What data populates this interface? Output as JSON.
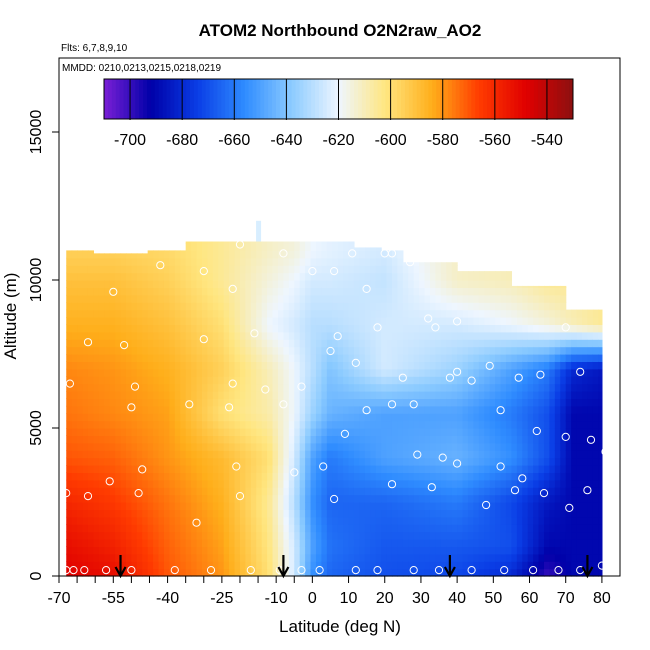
{
  "chart_data": {
    "type": "heatmap",
    "title": "ATOM2 Northbound O2N2raw_AO2",
    "flights_label": "Flts: 6,7,8,9,10",
    "dates_label": "MMDD: 0210,0213,0215,0218,0219",
    "xlabel": "Latitude (deg N)",
    "ylabel": "Altitude (m)",
    "xlim": [
      -70,
      85
    ],
    "ylim": [
      0,
      17500
    ],
    "x_ticks": [
      -70,
      -55,
      -40,
      -25,
      -10,
      0,
      10,
      20,
      30,
      40,
      50,
      60,
      70,
      80
    ],
    "x_tick_labels": [
      "-70",
      "-55",
      "-40",
      "-25",
      "-10",
      "0",
      "10",
      "20",
      "30",
      "40",
      "50",
      "60",
      "70",
      "80"
    ],
    "x_minor_ticks": [
      -65,
      -60,
      -50,
      -45,
      -35,
      -30,
      -20,
      -15,
      -5
    ],
    "y_ticks": [
      0,
      5000,
      10000,
      15000
    ],
    "y_tick_labels": [
      "0",
      "5000",
      "10000",
      "15000"
    ],
    "colorbar": {
      "ticks": [
        -700,
        -680,
        -660,
        -640,
        -620,
        -600,
        -580,
        -560,
        -540
      ],
      "tick_labels": [
        "-700",
        "-680",
        "-660",
        "-640",
        "-620",
        "-600",
        "-580",
        "-560",
        "-540"
      ],
      "range": [
        -710,
        -530
      ],
      "colors": [
        "#7a1fd6",
        "#0000a8",
        "#0a3ee6",
        "#2f8cff",
        "#8ccbff",
        "#eef6ff",
        "#ffe680",
        "#ffae1a",
        "#ff3b00",
        "#e00000",
        "#8c1010"
      ]
    },
    "field_rows": [
      {
        "alt": 0,
        "lat": [
          -68,
          -55,
          -40,
          -25,
          -12,
          -5,
          0,
          5,
          20,
          40,
          55,
          65,
          72,
          80
        ],
        "val": [
          -548,
          -552,
          -570,
          -580,
          -600,
          -625,
          -655,
          -665,
          -670,
          -672,
          -680,
          -700,
          -690,
          -690
        ]
      },
      {
        "alt": 1000,
        "lat": [
          -68,
          -55,
          -40,
          -25,
          -12,
          -5,
          0,
          5,
          20,
          40,
          55,
          65,
          72,
          80
        ],
        "val": [
          -552,
          -558,
          -572,
          -582,
          -602,
          -625,
          -650,
          -662,
          -668,
          -668,
          -670,
          -690,
          -690,
          -690
        ]
      },
      {
        "alt": 2500,
        "lat": [
          -68,
          -55,
          -40,
          -25,
          -12,
          -5,
          0,
          5,
          20,
          40,
          55,
          65,
          72,
          80
        ],
        "val": [
          -560,
          -565,
          -575,
          -585,
          -605,
          -630,
          -655,
          -665,
          -665,
          -660,
          -672,
          -685,
          -690,
          -690
        ]
      },
      {
        "alt": 4000,
        "lat": [
          -68,
          -55,
          -40,
          -25,
          -12,
          -5,
          0,
          5,
          20,
          40,
          55,
          65,
          72,
          80
        ],
        "val": [
          -570,
          -572,
          -580,
          -588,
          -600,
          -625,
          -650,
          -660,
          -650,
          -645,
          -655,
          -670,
          -690,
          -690
        ]
      },
      {
        "alt": 5500,
        "lat": [
          -68,
          -55,
          -40,
          -25,
          -12,
          -5,
          0,
          5,
          20,
          40,
          55,
          65,
          72,
          80
        ],
        "val": [
          -575,
          -578,
          -582,
          -600,
          -608,
          -620,
          -635,
          -645,
          -650,
          -650,
          -660,
          -670,
          -690,
          -690
        ]
      },
      {
        "alt": 7000,
        "lat": [
          -68,
          -55,
          -40,
          -25,
          -12,
          -5,
          0,
          5,
          20,
          40,
          55,
          65,
          72,
          80
        ],
        "val": [
          -578,
          -580,
          -585,
          -595,
          -610,
          -620,
          -630,
          -640,
          -625,
          -635,
          -650,
          -660,
          -680,
          -685
        ]
      },
      {
        "alt": 8500,
        "lat": [
          -68,
          -55,
          -40,
          -25,
          -12,
          -5,
          0,
          5,
          20,
          40,
          55,
          65,
          72,
          80
        ],
        "val": [
          -585,
          -585,
          -590,
          -600,
          -620,
          -625,
          -630,
          -630,
          -625,
          -625,
          -620,
          -615,
          -610,
          -605
        ]
      },
      {
        "alt": 10000,
        "lat": [
          -68,
          -55,
          -40,
          -25,
          -12,
          -5,
          0,
          5,
          20,
          40,
          55,
          65,
          72,
          80
        ],
        "val": [
          -590,
          -590,
          -595,
          -605,
          -615,
          -620,
          -625,
          -625,
          -628,
          -612,
          -610,
          -605,
          -605,
          -605
        ]
      },
      {
        "alt": 11000,
        "lat": [
          -68,
          -55,
          -40,
          -25,
          -12,
          -5,
          0,
          5,
          20,
          40,
          55,
          65,
          72,
          80
        ],
        "val": [
          -595,
          -595,
          -598,
          -605,
          -612,
          -615,
          -620,
          -622,
          -625,
          -612,
          -610,
          -605,
          -605,
          -605
        ]
      }
    ],
    "coverage": [
      {
        "lat_min": -68,
        "lat_max": -60,
        "alt_max": 11000
      },
      {
        "lat_min": -60,
        "lat_max": -45,
        "alt_max": 10900
      },
      {
        "lat_min": -45,
        "lat_max": -35,
        "alt_max": 11000
      },
      {
        "lat_min": -35,
        "lat_max": 11,
        "alt_max": 11300
      },
      {
        "lat_min": 11,
        "lat_max": 19,
        "alt_max": 11100
      },
      {
        "lat_min": 19,
        "lat_max": 25,
        "alt_max": 11000
      },
      {
        "lat_min": 25,
        "lat_max": 40,
        "alt_max": 10600
      },
      {
        "lat_min": 40,
        "lat_max": 55,
        "alt_max": 10300
      },
      {
        "lat_min": 55,
        "lat_max": 70,
        "alt_max": 9800
      },
      {
        "lat_min": 70,
        "lat_max": 80,
        "alt_max": 9000
      }
    ],
    "spike": {
      "lat": -15,
      "alt_min": 11300,
      "alt_max": 12000
    },
    "sample_points": [
      [
        -68,
        200
      ],
      [
        -66,
        200
      ],
      [
        -63,
        200
      ],
      [
        -57,
        200
      ],
      [
        -50,
        200
      ],
      [
        -38,
        200
      ],
      [
        -28,
        200
      ],
      [
        -17,
        200
      ],
      [
        -9,
        200
      ],
      [
        -3,
        200
      ],
      [
        2,
        200
      ],
      [
        12,
        200
      ],
      [
        18,
        200
      ],
      [
        28,
        200
      ],
      [
        35,
        200
      ],
      [
        44,
        200
      ],
      [
        53,
        200
      ],
      [
        61,
        200
      ],
      [
        68,
        200
      ],
      [
        74,
        200
      ],
      [
        80,
        350
      ],
      [
        -68,
        2800
      ],
      [
        -62,
        2700
      ],
      [
        -56,
        3200
      ],
      [
        -48,
        2800
      ],
      [
        -32,
        1800
      ],
      [
        -20,
        2700
      ],
      [
        6,
        2600
      ],
      [
        22,
        3100
      ],
      [
        33,
        3000
      ],
      [
        48,
        2400
      ],
      [
        56,
        2900
      ],
      [
        64,
        2800
      ],
      [
        71,
        2300
      ],
      [
        76,
        2900
      ],
      [
        -47,
        3600
      ],
      [
        -21,
        3700
      ],
      [
        -5,
        3500
      ],
      [
        3,
        3700
      ],
      [
        29,
        4100
      ],
      [
        36,
        4000
      ],
      [
        40,
        3800
      ],
      [
        52,
        3700
      ],
      [
        58,
        3300
      ],
      [
        62,
        4900
      ],
      [
        70,
        4700
      ],
      [
        77,
        4600
      ],
      [
        81,
        4200
      ],
      [
        -50,
        5700
      ],
      [
        -34,
        5800
      ],
      [
        -23,
        5700
      ],
      [
        -8,
        5800
      ],
      [
        9,
        4800
      ],
      [
        15,
        5600
      ],
      [
        22,
        5800
      ],
      [
        28,
        5800
      ],
      [
        40,
        6900
      ],
      [
        52,
        5600
      ],
      [
        57,
        6700
      ],
      [
        63,
        6800
      ],
      [
        -67,
        6500
      ],
      [
        -49,
        6400
      ],
      [
        -22,
        6500
      ],
      [
        -13,
        6300
      ],
      [
        -3,
        6400
      ],
      [
        5,
        7600
      ],
      [
        12,
        7200
      ],
      [
        25,
        6700
      ],
      [
        38,
        6700
      ],
      [
        44,
        6600
      ],
      [
        49,
        7100
      ],
      [
        74,
        6900
      ],
      [
        -62,
        7900
      ],
      [
        -52,
        7800
      ],
      [
        -30,
        8000
      ],
      [
        -16,
        8200
      ],
      [
        7,
        8100
      ],
      [
        18,
        8400
      ],
      [
        34,
        8400
      ],
      [
        40,
        8600
      ],
      [
        70,
        8400
      ],
      [
        -55,
        9600
      ],
      [
        -22,
        9700
      ],
      [
        6,
        10300
      ],
      [
        15,
        9700
      ],
      [
        20,
        10900
      ],
      [
        22,
        10900
      ],
      [
        -42,
        10500
      ],
      [
        -30,
        10300
      ],
      [
        -20,
        11200
      ],
      [
        -8,
        10900
      ],
      [
        0,
        10300
      ],
      [
        11,
        10900
      ],
      [
        32,
        8700
      ],
      [
        27,
        10600
      ]
    ],
    "arrows_lat": [
      -53,
      -8,
      38,
      76
    ]
  }
}
